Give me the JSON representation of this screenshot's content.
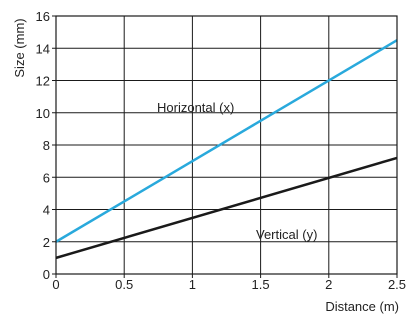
{
  "chart_data": {
    "type": "line",
    "xlabel": "Distance (m)",
    "ylabel": "Size (mm)",
    "xlim": [
      0,
      2.5
    ],
    "ylim": [
      0,
      16
    ],
    "x_ticks": [
      "0",
      "0.5",
      "1",
      "1.5",
      "2",
      "2.5"
    ],
    "y_ticks": [
      "0",
      "2",
      "4",
      "6",
      "8",
      "10",
      "12",
      "14",
      "16"
    ],
    "grid": true,
    "series": [
      {
        "name": "Horizontal (x)",
        "color": "#29a9dc",
        "x": [
          0,
          2.5
        ],
        "y": [
          2,
          14.5
        ]
      },
      {
        "name": "Vertical (y)",
        "color": "#1a1a1a",
        "x": [
          0,
          2.5
        ],
        "y": [
          1,
          7.2
        ]
      }
    ],
    "annotations": [
      "Horizontal (x)",
      "Vertical (y)"
    ]
  }
}
